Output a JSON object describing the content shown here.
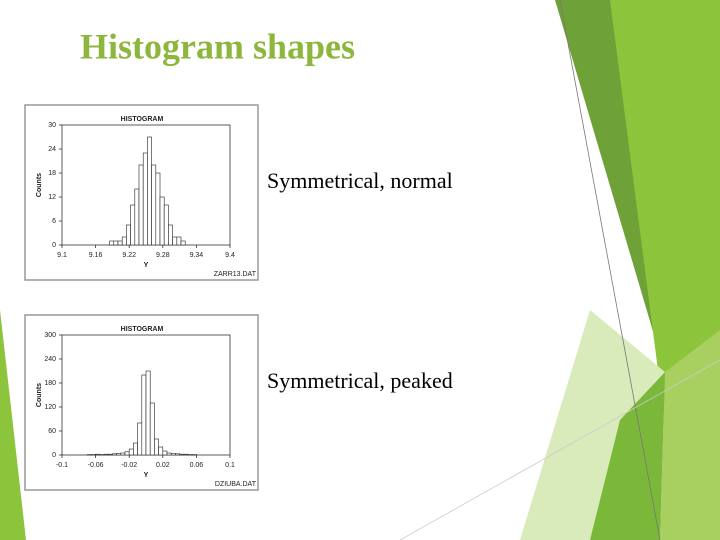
{
  "title": "Histogram shapes",
  "captions": [
    "Symmetrical, normal",
    "Symmetrical, peaked"
  ],
  "chart_data": [
    {
      "type": "histogram",
      "title": "HISTOGRAM",
      "xlabel": "Y",
      "ylabel": "Counts",
      "footer": "ZARR13.DAT",
      "bins": [
        9.185,
        9.1925,
        9.2,
        9.2075,
        9.215,
        9.2225,
        9.23,
        9.2375,
        9.245,
        9.2525,
        9.26,
        9.2675,
        9.275,
        9.2825,
        9.29,
        9.2975,
        9.305,
        9.3125,
        9.32
      ],
      "values": [
        1,
        1,
        1,
        2,
        5,
        10,
        14,
        20,
        23,
        27,
        20,
        18,
        12,
        10,
        5,
        2,
        2,
        1
      ],
      "xlim": [
        9.1,
        9.4
      ],
      "xticks": [
        9.1,
        9.16,
        9.22,
        9.28,
        9.34,
        9.4
      ],
      "ylim": [
        0,
        30
      ],
      "yticks": [
        0,
        6,
        12,
        18,
        24,
        30
      ]
    },
    {
      "type": "histogram",
      "title": "HISTOGRAM",
      "xlabel": "Y",
      "ylabel": "Counts",
      "footer": "DZIUBA.DAT",
      "bins": [
        -0.07,
        -0.065,
        -0.06,
        -0.055,
        -0.05,
        -0.045,
        -0.04,
        -0.035,
        -0.03,
        -0.025,
        -0.02,
        -0.015,
        -0.01,
        -0.005,
        0,
        0.005,
        0.01,
        0.015,
        0.02,
        0.025,
        0.03,
        0.035,
        0.04,
        0.045,
        0.05,
        0.055,
        0.06
      ],
      "values": [
        1,
        1,
        2,
        1,
        2,
        2,
        3,
        4,
        5,
        8,
        15,
        30,
        80,
        200,
        210,
        130,
        40,
        20,
        10,
        5,
        4,
        3,
        2,
        2,
        1,
        1
      ],
      "xlim": [
        -0.1,
        0.1
      ],
      "xticks": [
        -0.1,
        -0.06,
        -0.02,
        0.02,
        0.06,
        0.1
      ],
      "ylim": [
        0,
        300
      ],
      "yticks": [
        0,
        60,
        120,
        180,
        240,
        300
      ]
    }
  ]
}
